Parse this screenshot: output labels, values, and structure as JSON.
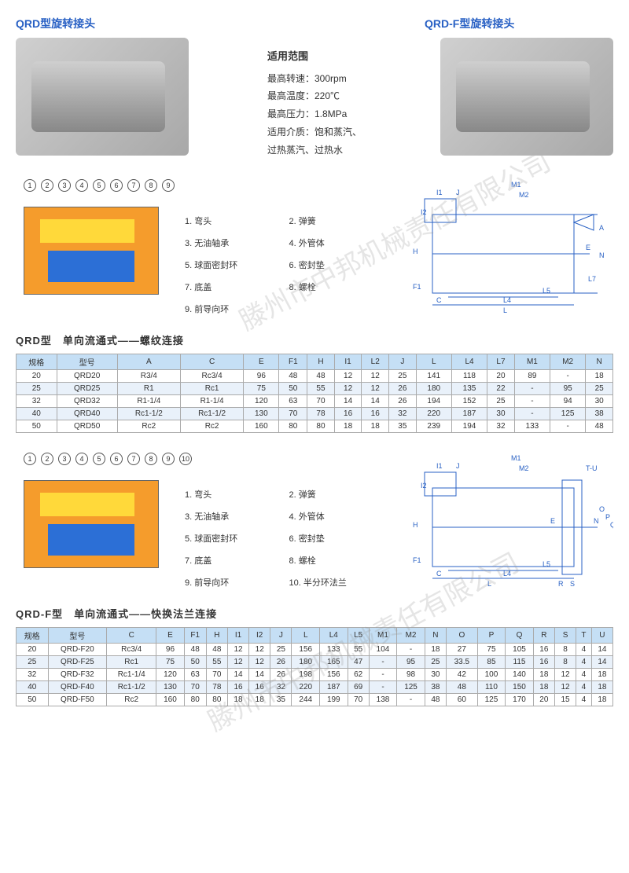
{
  "watermark": "滕州市中邦机械责任有限公司",
  "titles": {
    "left": "QRD型旋转接头",
    "right": "QRD-F型旋转接头"
  },
  "specs": {
    "heading": "适用范围",
    "rows": [
      {
        "label": "最高转速：",
        "value": "300rpm"
      },
      {
        "label": "最高温度：",
        "value": "220℃"
      },
      {
        "label": "最高压力：",
        "value": "1.8MPa"
      },
      {
        "label": "适用介质：",
        "value": "饱和蒸汽、"
      },
      {
        "label": "",
        "value": "过热蒸汽、过热水"
      }
    ]
  },
  "parts1": [
    {
      "n": "1.",
      "t": "弯头"
    },
    {
      "n": "2.",
      "t": "弹簧"
    },
    {
      "n": "3.",
      "t": "无油轴承"
    },
    {
      "n": "4.",
      "t": "外管体"
    },
    {
      "n": "5.",
      "t": "球面密封环"
    },
    {
      "n": "6.",
      "t": "密封垫"
    },
    {
      "n": "7.",
      "t": "底盖"
    },
    {
      "n": "8.",
      "t": "螺栓"
    },
    {
      "n": "9.",
      "t": "前导向环"
    },
    {
      "n": "",
      "t": ""
    }
  ],
  "callouts1": [
    "1",
    "2",
    "3",
    "4",
    "5",
    "6",
    "7",
    "8",
    "9"
  ],
  "section1": "QRD型　单向流通式——螺纹连接",
  "table1": {
    "headers": [
      "规格",
      "型号",
      "A",
      "C",
      "E",
      "F1",
      "H",
      "I1",
      "L2",
      "J",
      "L",
      "L4",
      "L7",
      "M1",
      "M2",
      "N"
    ],
    "rows": [
      [
        "20",
        "QRD20",
        "R3/4",
        "Rc3/4",
        "96",
        "48",
        "48",
        "12",
        "12",
        "25",
        "141",
        "118",
        "20",
        "89",
        "-",
        "18"
      ],
      [
        "25",
        "QRD25",
        "R1",
        "Rc1",
        "75",
        "50",
        "55",
        "12",
        "12",
        "26",
        "180",
        "135",
        "22",
        "-",
        "95",
        "25"
      ],
      [
        "32",
        "QRD32",
        "R1-1/4",
        "R1-1/4",
        "120",
        "63",
        "70",
        "14",
        "14",
        "26",
        "194",
        "152",
        "25",
        "-",
        "94",
        "30"
      ],
      [
        "40",
        "QRD40",
        "Rc1-1/2",
        "Rc1-1/2",
        "130",
        "70",
        "78",
        "16",
        "16",
        "32",
        "220",
        "187",
        "30",
        "-",
        "125",
        "38"
      ],
      [
        "50",
        "QRD50",
        "Rc2",
        "Rc2",
        "160",
        "80",
        "80",
        "18",
        "18",
        "35",
        "239",
        "194",
        "32",
        "133",
        "-",
        "48"
      ]
    ]
  },
  "parts2": [
    {
      "n": "1.",
      "t": "弯头"
    },
    {
      "n": "2.",
      "t": "弹簧"
    },
    {
      "n": "3.",
      "t": "无油轴承"
    },
    {
      "n": "4.",
      "t": "外管体"
    },
    {
      "n": "5.",
      "t": "球面密封环"
    },
    {
      "n": "6.",
      "t": "密封垫"
    },
    {
      "n": "7.",
      "t": "底盖"
    },
    {
      "n": "8.",
      "t": "螺栓"
    },
    {
      "n": "9.",
      "t": "前导向环"
    },
    {
      "n": "10.",
      "t": "半分环法兰"
    }
  ],
  "callouts2": [
    "1",
    "2",
    "3",
    "4",
    "5",
    "6",
    "7",
    "8",
    "9",
    "10"
  ],
  "section2": "QRD-F型　单向流通式——快换法兰连接",
  "table2": {
    "headers": [
      "规格",
      "型号",
      "C",
      "E",
      "F1",
      "H",
      "I1",
      "I2",
      "J",
      "L",
      "L4",
      "L5",
      "M1",
      "M2",
      "N",
      "O",
      "P",
      "Q",
      "R",
      "S",
      "T",
      "U"
    ],
    "rows": [
      [
        "20",
        "QRD-F20",
        "Rc3/4",
        "96",
        "48",
        "48",
        "12",
        "12",
        "25",
        "156",
        "133",
        "55",
        "104",
        "-",
        "18",
        "27",
        "75",
        "105",
        "16",
        "8",
        "4",
        "14"
      ],
      [
        "25",
        "QRD-F25",
        "Rc1",
        "75",
        "50",
        "55",
        "12",
        "12",
        "26",
        "180",
        "165",
        "47",
        "-",
        "95",
        "25",
        "33.5",
        "85",
        "115",
        "16",
        "8",
        "4",
        "14"
      ],
      [
        "32",
        "QRD-F32",
        "Rc1-1/4",
        "120",
        "63",
        "70",
        "14",
        "14",
        "26",
        "198",
        "156",
        "62",
        "-",
        "98",
        "30",
        "42",
        "100",
        "140",
        "18",
        "12",
        "4",
        "18"
      ],
      [
        "40",
        "QRD-F40",
        "Rc1-1/2",
        "130",
        "70",
        "78",
        "16",
        "16",
        "32",
        "220",
        "187",
        "69",
        "-",
        "125",
        "38",
        "48",
        "110",
        "150",
        "18",
        "12",
        "4",
        "18"
      ],
      [
        "50",
        "QRD-F50",
        "Rc2",
        "160",
        "80",
        "80",
        "18",
        "18",
        "35",
        "244",
        "199",
        "70",
        "138",
        "-",
        "48",
        "60",
        "125",
        "170",
        "20",
        "15",
        "4",
        "18"
      ]
    ]
  },
  "dimlabels1": [
    "I1",
    "J",
    "M1",
    "M2",
    "I2",
    "H",
    "E",
    "A",
    "N",
    "F1",
    "L7",
    "C",
    "L5",
    "L4",
    "L"
  ],
  "dimlabels2": [
    "I1",
    "J",
    "M1",
    "M2",
    "T-U",
    "I2",
    "H",
    "E",
    "N",
    "O",
    "P",
    "Q",
    "F1",
    "C",
    "R",
    "S",
    "L5",
    "L4",
    "L"
  ]
}
